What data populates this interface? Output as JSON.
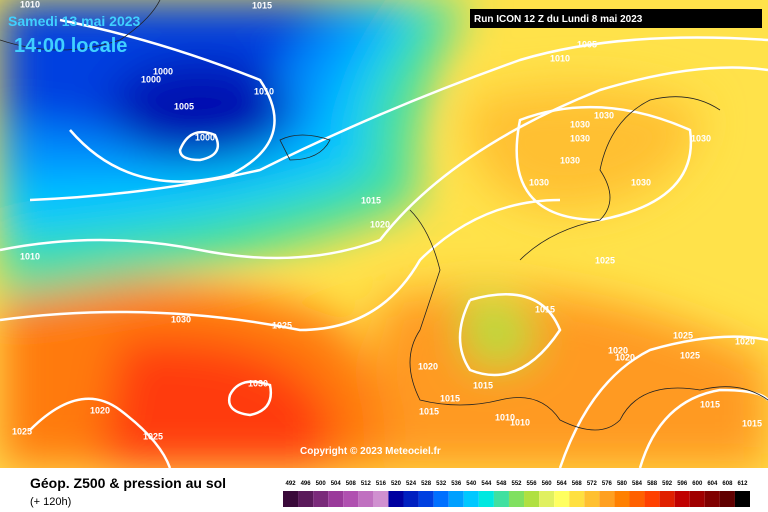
{
  "header": {
    "date": "Samedi 13 mai 2023",
    "time": "14:00 locale",
    "run": "Run ICON 12 Z du Lundi 8 mai 2023"
  },
  "copyright": "Copyright © 2023 Meteociel.fr",
  "footer": {
    "title": "Géop. Z500 & pression au sol",
    "lead": "(+ 120h)"
  },
  "isobar_labels": [
    1010,
    1015,
    1005,
    1010,
    1000,
    1000,
    1005,
    1000,
    1010,
    1015,
    1020,
    1010,
    1030,
    1025,
    1030,
    1020,
    1025,
    1025,
    1030,
    1030,
    1030,
    1030,
    1030,
    1030,
    1030,
    1025,
    1015,
    1020,
    1015,
    1015,
    1015,
    1010,
    1010,
    1020,
    1020,
    1025,
    1025,
    1020,
    1015,
    1015
  ],
  "legend": {
    "values": [
      492,
      496,
      500,
      504,
      508,
      512,
      516,
      520,
      524,
      528,
      532,
      536,
      540,
      544,
      548,
      552,
      556,
      560,
      564,
      568,
      572,
      576,
      580,
      584,
      588,
      592,
      596,
      600,
      604,
      608,
      612
    ],
    "colors": [
      "#3a0a3a",
      "#5a1a5a",
      "#7a2a7a",
      "#9a3a9a",
      "#b050b0",
      "#c070c0",
      "#d090d0",
      "#0000a0",
      "#0020c0",
      "#0040e0",
      "#0070ff",
      "#00a0ff",
      "#00c8ff",
      "#00e8e0",
      "#40e0a0",
      "#80e060",
      "#b0e040",
      "#e0f060",
      "#ffff60",
      "#ffe040",
      "#ffc030",
      "#ffa020",
      "#ff8000",
      "#ff6000",
      "#ff4000",
      "#e02000",
      "#c00000",
      "#a00000",
      "#800000",
      "#600000",
      "#000000"
    ]
  }
}
